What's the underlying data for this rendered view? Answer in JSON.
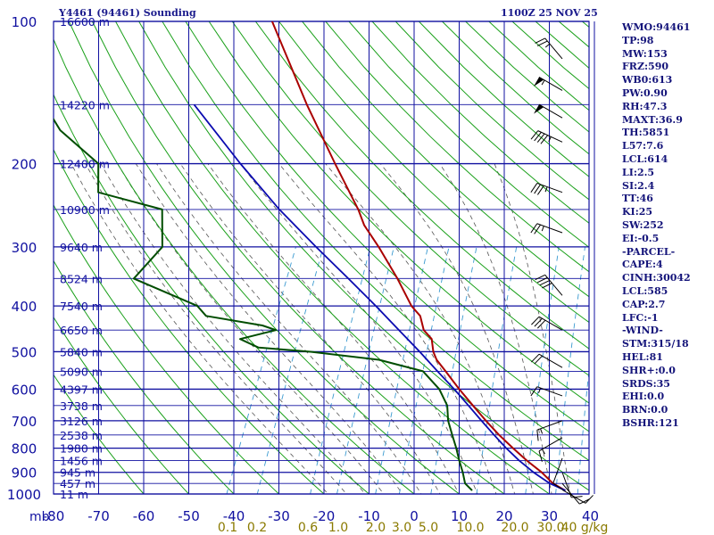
{
  "header": {
    "title": "Y4461 (94461) Sounding",
    "time": "1100Z 25 NOV 25"
  },
  "indices": [
    "WMO:94461",
    "TP:98",
    "MW:153",
    "FRZ:590",
    "WB0:613",
    "PW:0.90",
    "RH:47.3",
    "MAXT:36.9",
    "TH:5851",
    "L57:7.6",
    "LCL:614",
    "LI:2.5",
    "SI:2.4",
    "TT:46",
    "KI:25",
    "SW:252",
    "EI:-0.5",
    "-PARCEL-",
    "CAPE:4",
    "CINH:30042",
    "LCL:585",
    "CAP:2.7",
    "LFC:-1",
    "-WIND-",
    "STM:315/18",
    "HEL:81",
    "SHR+:0.0",
    "SRDS:35",
    "EHI:0.0",
    "BRN:0.0",
    "BSHR:121"
  ],
  "colors": {
    "grid": "#1010a0",
    "dry_adiabat": "#1aa01a",
    "moist_adiabat": "#555555",
    "mixing_ratio": "#3a9ad0",
    "temperature": "#aa0000",
    "dewpoint": "#004d00",
    "parcel": "#0a0ab0",
    "text": "#1a1a8c"
  },
  "chart_data": {
    "type": "skew-t log-p sounding",
    "title": "Y4461 (94461) Sounding",
    "x_unit": "°C",
    "y_unit": "mb",
    "pressure_ticks": [
      100,
      200,
      300,
      400,
      500,
      600,
      700,
      800,
      900,
      1000
    ],
    "pressure_tick_labels": [
      "100",
      "200",
      "300",
      "400",
      "500",
      "600",
      "700",
      "800",
      "900",
      "1000"
    ],
    "y_unit_label": "mb",
    "temperature_ticks": [
      -80,
      -70,
      -60,
      -50,
      -40,
      -30,
      -20,
      -10,
      0,
      10,
      20,
      30,
      40
    ],
    "temperature_tick_labels": [
      "-80",
      "-70",
      "-60",
      "-50",
      "-40",
      "-30",
      "-20",
      "-10",
      "0",
      "10",
      "20",
      "30",
      "40"
    ],
    "height_levels": [
      {
        "p": 100,
        "label": "16600 m"
      },
      {
        "p": 150,
        "label": "14220 m"
      },
      {
        "p": 200,
        "label": "12400 m"
      },
      {
        "p": 250,
        "label": "10900 m"
      },
      {
        "p": 300,
        "label": "9640 m"
      },
      {
        "p": 350,
        "label": "8524 m"
      },
      {
        "p": 400,
        "label": "7540 m"
      },
      {
        "p": 450,
        "label": "6650 m"
      },
      {
        "p": 500,
        "label": "5840 m"
      },
      {
        "p": 550,
        "label": "5090 m"
      },
      {
        "p": 600,
        "label": "4397 m"
      },
      {
        "p": 650,
        "label": "3738 m"
      },
      {
        "p": 700,
        "label": "3126 m"
      },
      {
        "p": 750,
        "label": "2538 m"
      },
      {
        "p": 800,
        "label": "1980 m"
      },
      {
        "p": 850,
        "label": "1456 m"
      },
      {
        "p": 900,
        "label": "945 m"
      },
      {
        "p": 950,
        "label": "457 m"
      },
      {
        "p": 1000,
        "label": "11 m"
      }
    ],
    "mixing_ratio_labels": [
      "0.1",
      "0.2",
      "0.6",
      "1.0",
      "2.0",
      "3.0",
      "5.0",
      "10.0",
      "20.0",
      "30.0",
      "40 g/kg"
    ],
    "mixing_ratio_values": [
      0.1,
      0.2,
      0.6,
      1.0,
      2.0,
      3.0,
      5.0,
      10.0,
      20.0,
      30.0,
      40.0
    ],
    "series": [
      {
        "name": "Temperature",
        "points": [
          [
            983,
            33.2
          ],
          [
            950,
            29.7
          ],
          [
            900,
            26.0
          ],
          [
            850,
            21.5
          ],
          [
            800,
            17.1
          ],
          [
            750,
            12.6
          ],
          [
            700,
            8.2
          ],
          [
            650,
            3.7
          ],
          [
            600,
            -1.1
          ],
          [
            550,
            -6.0
          ],
          [
            520,
            -9.2
          ],
          [
            500,
            -10.8
          ],
          [
            470,
            -12.5
          ],
          [
            450,
            -15.2
          ],
          [
            420,
            -17.5
          ],
          [
            400,
            -20.5
          ],
          [
            350,
            -26.5
          ],
          [
            300,
            -34.0
          ],
          [
            270,
            -39.5
          ],
          [
            250,
            -42.5
          ],
          [
            200,
            -52.5
          ],
          [
            150,
            -65.0
          ],
          [
            100,
            -81.5
          ]
        ]
      },
      {
        "name": "Dewpoint",
        "points": [
          [
            983,
            12.5
          ],
          [
            950,
            10.2
          ],
          [
            900,
            8.5
          ],
          [
            850,
            6.5
          ],
          [
            800,
            4.5
          ],
          [
            750,
            2.2
          ],
          [
            700,
            -0.2
          ],
          [
            650,
            -2.0
          ],
          [
            600,
            -5.5
          ],
          [
            550,
            -11.0
          ],
          [
            520,
            -22.0
          ],
          [
            500,
            -38.0
          ],
          [
            490,
            -50.0
          ],
          [
            470,
            -55.0
          ],
          [
            450,
            -48.0
          ],
          [
            440,
            -51.5
          ],
          [
            420,
            -65.0
          ],
          [
            400,
            -68.0
          ],
          [
            350,
            -85.0
          ],
          [
            300,
            -82.0
          ],
          [
            250,
            -86.0
          ],
          [
            230,
            -102.0
          ],
          [
            200,
            -105.0
          ],
          [
            170,
            -117.0
          ],
          [
            160,
            -120.0
          ]
        ]
      },
      {
        "name": "Parcel",
        "points": [
          [
            983,
            33.2
          ],
          [
            950,
            29.0
          ],
          [
            900,
            24.2
          ],
          [
            850,
            19.8
          ],
          [
            800,
            15.6
          ],
          [
            750,
            11.5
          ],
          [
            700,
            7.2
          ],
          [
            650,
            2.7
          ],
          [
            600,
            -2.2
          ],
          [
            550,
            -7.8
          ],
          [
            500,
            -13.8
          ],
          [
            450,
            -20.7
          ],
          [
            400,
            -28.4
          ],
          [
            350,
            -37.4
          ],
          [
            300,
            -47.9
          ],
          [
            250,
            -60.0
          ],
          [
            200,
            -73.5
          ],
          [
            150,
            -90.0
          ]
        ]
      }
    ],
    "wind_barbs": [
      {
        "p": 120,
        "dir": 320,
        "spd": 25
      },
      {
        "p": 140,
        "dir": 300,
        "spd": 55
      },
      {
        "p": 160,
        "dir": 300,
        "spd": 50
      },
      {
        "p": 180,
        "dir": 295,
        "spd": 45
      },
      {
        "p": 230,
        "dir": 290,
        "spd": 35
      },
      {
        "p": 280,
        "dir": 290,
        "spd": 25
      },
      {
        "p": 380,
        "dir": 320,
        "spd": 40
      },
      {
        "p": 450,
        "dir": 300,
        "spd": 30
      },
      {
        "p": 540,
        "dir": 300,
        "spd": 20
      },
      {
        "p": 620,
        "dir": 290,
        "spd": 15
      },
      {
        "p": 700,
        "dir": 250,
        "spd": 15
      },
      {
        "p": 760,
        "dir": 240,
        "spd": 15
      },
      {
        "p": 840,
        "dir": 200,
        "spd": 10
      },
      {
        "p": 900,
        "dir": 160,
        "spd": 10
      },
      {
        "p": 950,
        "dir": 140,
        "spd": 10
      },
      {
        "p": 980,
        "dir": 120,
        "spd": 10
      }
    ]
  }
}
